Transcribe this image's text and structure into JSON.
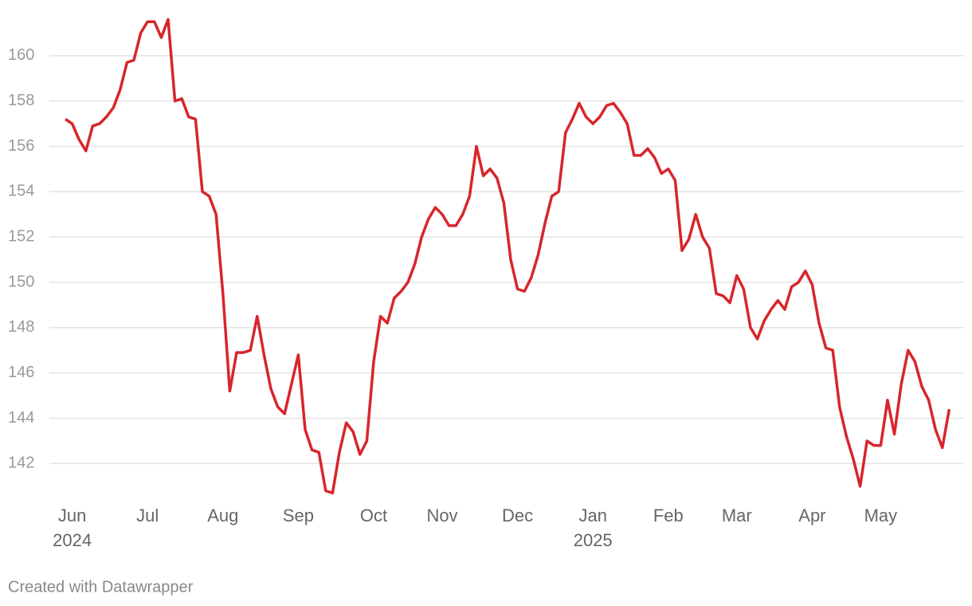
{
  "chart_data": {
    "type": "line",
    "categories": [
      null,
      [
        "Jun",
        "2024"
      ],
      null,
      null,
      null,
      null,
      null,
      null,
      null,
      null,
      null,
      null,
      "Jul",
      null,
      null,
      null,
      null,
      null,
      null,
      null,
      null,
      null,
      null,
      "Aug",
      null,
      null,
      null,
      null,
      null,
      null,
      null,
      null,
      null,
      null,
      "Sep",
      null,
      null,
      null,
      null,
      null,
      null,
      null,
      null,
      null,
      null,
      "Oct",
      null,
      null,
      null,
      null,
      null,
      null,
      null,
      null,
      null,
      "Nov",
      null,
      null,
      null,
      null,
      null,
      null,
      null,
      null,
      null,
      null,
      "Dec",
      null,
      null,
      null,
      null,
      null,
      null,
      null,
      null,
      null,
      null,
      [
        "Jan",
        "2025"
      ],
      null,
      null,
      null,
      null,
      null,
      null,
      null,
      null,
      null,
      null,
      "Feb",
      null,
      null,
      null,
      null,
      null,
      null,
      null,
      null,
      null,
      "Mar",
      null,
      null,
      null,
      null,
      null,
      null,
      null,
      null,
      null,
      null,
      "Apr",
      null,
      null,
      null,
      null,
      null,
      null,
      null,
      null,
      null,
      "May",
      null,
      null,
      null,
      null,
      null,
      null,
      null,
      null,
      null,
      null
    ],
    "series": [
      {
        "color": "#d7262b",
        "values": [
          157.2,
          157.0,
          156.3,
          155.8,
          156.9,
          157.0,
          157.3,
          157.7,
          158.5,
          159.7,
          159.8,
          161.0,
          161.5,
          161.5,
          160.8,
          161.6,
          158.0,
          158.1,
          157.3,
          157.2,
          154.0,
          153.8,
          153.0,
          149.5,
          145.2,
          146.9,
          146.9,
          147.0,
          148.5,
          146.8,
          145.3,
          144.5,
          144.2,
          145.5,
          146.8,
          143.5,
          142.6,
          142.5,
          140.8,
          140.7,
          142.5,
          143.8,
          143.4,
          142.4,
          143.0,
          146.5,
          148.5,
          148.2,
          149.3,
          149.6,
          150.0,
          150.8,
          152.0,
          152.8,
          153.3,
          153.0,
          152.5,
          152.5,
          153.0,
          153.8,
          156.0,
          154.7,
          155.0,
          154.6,
          153.5,
          151.0,
          149.7,
          149.6,
          150.2,
          151.2,
          152.6,
          153.8,
          154.0,
          156.6,
          157.2,
          157.9,
          157.3,
          157.0,
          157.3,
          157.8,
          157.9,
          157.5,
          157.0,
          155.6,
          155.6,
          155.9,
          155.5,
          154.8,
          155.0,
          154.5,
          151.4,
          151.9,
          153.0,
          152.0,
          151.5,
          149.5,
          149.4,
          149.1,
          150.3,
          149.7,
          148.0,
          147.5,
          148.3,
          148.8,
          149.2,
          148.8,
          149.8,
          150.0,
          150.5,
          149.9,
          148.2,
          147.1,
          147.0,
          144.5,
          143.2,
          142.2,
          141.0,
          143.0,
          142.8,
          142.8,
          144.8,
          143.3,
          145.5,
          147.0,
          146.5,
          145.4,
          144.8,
          143.5,
          142.7,
          144.4
        ]
      }
    ],
    "ylim": [
      140.5,
      162
    ],
    "yticks": [
      142,
      144,
      146,
      148,
      150,
      152,
      154,
      156,
      158,
      160
    ],
    "grid": true,
    "footer": "Created with Datawrapper"
  }
}
